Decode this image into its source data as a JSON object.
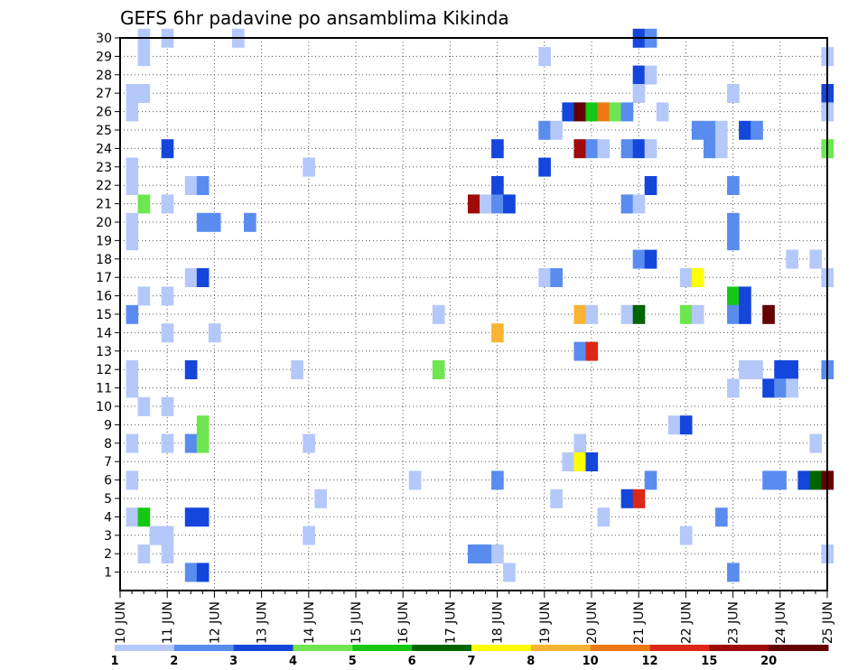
{
  "chart_data": {
    "type": "heatmap",
    "title": "GEFS 6hr padavine po ansamblima Kikinda",
    "xlabel": "",
    "ylabel": "",
    "x_tick_labels": [
      "10 JUN",
      "11 JUN",
      "12 JUN",
      "13 JUN",
      "14 JUN",
      "15 JUN",
      "16 JUN",
      "17 JUN",
      "18 JUN",
      "19 JUN",
      "20 JUN",
      "21 JUN",
      "22 JUN",
      "23 JUN",
      "24 JUN",
      "25 JUN"
    ],
    "y_tick_labels": [
      "1",
      "2",
      "3",
      "4",
      "5",
      "6",
      "7",
      "8",
      "9",
      "10",
      "11",
      "12",
      "13",
      "14",
      "15",
      "16",
      "17",
      "18",
      "19",
      "20",
      "21",
      "22",
      "23",
      "24",
      "25",
      "26",
      "27",
      "28",
      "29",
      "30"
    ],
    "x_step": "6hr",
    "y_range": [
      0,
      30
    ],
    "grid": true,
    "legend_placement": "bottom",
    "color_levels": [
      {
        "from": "1",
        "to": "2",
        "color": "#b4c8fa"
      },
      {
        "from": "2",
        "to": "3",
        "color": "#5a8cf0"
      },
      {
        "from": "3",
        "to": "4",
        "color": "#1446dc"
      },
      {
        "from": "4",
        "to": "5",
        "color": "#6ee650"
      },
      {
        "from": "5",
        "to": "6",
        "color": "#14c814"
      },
      {
        "from": "6",
        "to": "7",
        "color": "#006400"
      },
      {
        "from": "7",
        "to": "8",
        "color": "#ffff00"
      },
      {
        "from": "8",
        "to": "10",
        "color": "#fab432"
      },
      {
        "from": "10",
        "to": "12",
        "color": "#f07814"
      },
      {
        "from": "12",
        "to": "15",
        "color": "#dc2814"
      },
      {
        "from": "15",
        "to": "20",
        "color": "#a00a0a"
      },
      {
        "from": "20",
        "to": "",
        "color": "#640000"
      }
    ],
    "legend_labels": [
      "1",
      "2",
      "3",
      "4",
      "5",
      "6",
      "7",
      "8",
      "10",
      "12",
      "15",
      "20"
    ],
    "cells_format": "[member, valid time (day of June), precipitation level index into color_levels]",
    "cells": [
      [
        30,
        10.5,
        0
      ],
      [
        30,
        11.0,
        0
      ],
      [
        30,
        12.5,
        0
      ],
      [
        30,
        21.0,
        2
      ],
      [
        30,
        21.25,
        1
      ],
      [
        29,
        10.5,
        0
      ],
      [
        29,
        19.0,
        0
      ],
      [
        29,
        25.0,
        0
      ],
      [
        28,
        21.0,
        2
      ],
      [
        28,
        21.25,
        0
      ],
      [
        27,
        10.25,
        0
      ],
      [
        27,
        10.5,
        0
      ],
      [
        27,
        21.0,
        0
      ],
      [
        27,
        23.0,
        0
      ],
      [
        27,
        25.0,
        2
      ],
      [
        26,
        10.25,
        0
      ],
      [
        26,
        19.5,
        2
      ],
      [
        26,
        19.75,
        11
      ],
      [
        26,
        20.0,
        4
      ],
      [
        26,
        20.25,
        8
      ],
      [
        26,
        20.5,
        3
      ],
      [
        26,
        20.75,
        1
      ],
      [
        26,
        21.5,
        0
      ],
      [
        26,
        25.0,
        0
      ],
      [
        25,
        19.0,
        1
      ],
      [
        25,
        19.25,
        0
      ],
      [
        25,
        22.25,
        1
      ],
      [
        25,
        22.5,
        1
      ],
      [
        25,
        22.75,
        0
      ],
      [
        25,
        23.25,
        2
      ],
      [
        25,
        23.5,
        1
      ],
      [
        24,
        11.0,
        2
      ],
      [
        24,
        18.0,
        2
      ],
      [
        24,
        19.75,
        10
      ],
      [
        24,
        20.0,
        1
      ],
      [
        24,
        20.25,
        0
      ],
      [
        24,
        20.75,
        1
      ],
      [
        24,
        21.0,
        2
      ],
      [
        24,
        21.25,
        0
      ],
      [
        24,
        22.5,
        1
      ],
      [
        24,
        22.75,
        0
      ],
      [
        24,
        25.0,
        3
      ],
      [
        23,
        10.25,
        0
      ],
      [
        23,
        14.0,
        0
      ],
      [
        23,
        19.0,
        2
      ],
      [
        22,
        10.25,
        0
      ],
      [
        22,
        11.5,
        0
      ],
      [
        22,
        11.75,
        1
      ],
      [
        22,
        18.0,
        2
      ],
      [
        22,
        21.25,
        2
      ],
      [
        22,
        23.0,
        1
      ],
      [
        21,
        10.5,
        3
      ],
      [
        21,
        11.0,
        0
      ],
      [
        21,
        17.5,
        10
      ],
      [
        21,
        17.75,
        0
      ],
      [
        21,
        18.0,
        1
      ],
      [
        21,
        18.25,
        2
      ],
      [
        21,
        20.75,
        1
      ],
      [
        21,
        21.0,
        0
      ],
      [
        20,
        10.25,
        0
      ],
      [
        20,
        11.75,
        1
      ],
      [
        20,
        12.0,
        1
      ],
      [
        20,
        12.75,
        1
      ],
      [
        20,
        23.0,
        1
      ],
      [
        19,
        10.25,
        0
      ],
      [
        19,
        23.0,
        1
      ],
      [
        18,
        21.0,
        1
      ],
      [
        18,
        21.25,
        2
      ],
      [
        18,
        24.25,
        0
      ],
      [
        18,
        24.75,
        0
      ],
      [
        17,
        11.5,
        0
      ],
      [
        17,
        11.75,
        2
      ],
      [
        17,
        19.0,
        0
      ],
      [
        17,
        19.25,
        1
      ],
      [
        17,
        22.0,
        0
      ],
      [
        17,
        22.25,
        6
      ],
      [
        17,
        25.0,
        0
      ],
      [
        16,
        10.5,
        0
      ],
      [
        16,
        11.0,
        0
      ],
      [
        16,
        23.0,
        4
      ],
      [
        16,
        23.25,
        2
      ],
      [
        15,
        10.25,
        1
      ],
      [
        15,
        16.75,
        0
      ],
      [
        15,
        19.75,
        7
      ],
      [
        15,
        20.0,
        0
      ],
      [
        15,
        20.75,
        0
      ],
      [
        15,
        21.0,
        5
      ],
      [
        15,
        22.0,
        3
      ],
      [
        15,
        22.25,
        0
      ],
      [
        15,
        23.0,
        1
      ],
      [
        15,
        23.25,
        2
      ],
      [
        15,
        23.75,
        11
      ],
      [
        14,
        11.0,
        0
      ],
      [
        14,
        12.0,
        0
      ],
      [
        14,
        18.0,
        7
      ],
      [
        13,
        19.75,
        1
      ],
      [
        13,
        20.0,
        9
      ],
      [
        12,
        10.25,
        0
      ],
      [
        12,
        11.5,
        2
      ],
      [
        12,
        13.75,
        0
      ],
      [
        12,
        16.75,
        3
      ],
      [
        12,
        23.25,
        0
      ],
      [
        12,
        23.5,
        0
      ],
      [
        12,
        24.0,
        2
      ],
      [
        12,
        24.25,
        2
      ],
      [
        12,
        25.0,
        1
      ],
      [
        11,
        10.25,
        0
      ],
      [
        11,
        23.0,
        0
      ],
      [
        11,
        23.75,
        2
      ],
      [
        11,
        24.0,
        1
      ],
      [
        11,
        24.25,
        0
      ],
      [
        10,
        10.5,
        0
      ],
      [
        10,
        11.0,
        0
      ],
      [
        9,
        11.75,
        3
      ],
      [
        9,
        21.75,
        0
      ],
      [
        9,
        22.0,
        2
      ],
      [
        8,
        10.25,
        0
      ],
      [
        8,
        11.0,
        0
      ],
      [
        8,
        11.5,
        1
      ],
      [
        8,
        11.75,
        3
      ],
      [
        8,
        14.0,
        0
      ],
      [
        8,
        19.75,
        0
      ],
      [
        8,
        24.75,
        0
      ],
      [
        7,
        19.5,
        0
      ],
      [
        7,
        19.75,
        6
      ],
      [
        7,
        20.0,
        2
      ],
      [
        6,
        10.25,
        0
      ],
      [
        6,
        16.25,
        0
      ],
      [
        6,
        18.0,
        1
      ],
      [
        6,
        21.25,
        1
      ],
      [
        6,
        23.75,
        1
      ],
      [
        6,
        24.0,
        1
      ],
      [
        6,
        24.5,
        2
      ],
      [
        6,
        24.75,
        5
      ],
      [
        6,
        25.0,
        11
      ],
      [
        5,
        14.25,
        0
      ],
      [
        5,
        19.25,
        0
      ],
      [
        5,
        20.75,
        2
      ],
      [
        5,
        21.0,
        9
      ],
      [
        4,
        10.25,
        0
      ],
      [
        4,
        10.5,
        4
      ],
      [
        4,
        11.5,
        2
      ],
      [
        4,
        11.75,
        2
      ],
      [
        4,
        20.25,
        0
      ],
      [
        4,
        22.75,
        1
      ],
      [
        3,
        10.75,
        0
      ],
      [
        3,
        11.0,
        0
      ],
      [
        3,
        14.0,
        0
      ],
      [
        3,
        22.0,
        0
      ],
      [
        2,
        10.5,
        0
      ],
      [
        2,
        11.0,
        0
      ],
      [
        2,
        17.5,
        1
      ],
      [
        2,
        17.75,
        1
      ],
      [
        2,
        18.0,
        0
      ],
      [
        2,
        25.0,
        0
      ],
      [
        1,
        11.5,
        1
      ],
      [
        1,
        11.75,
        2
      ],
      [
        1,
        18.25,
        0
      ],
      [
        1,
        23.0,
        1
      ]
    ]
  }
}
